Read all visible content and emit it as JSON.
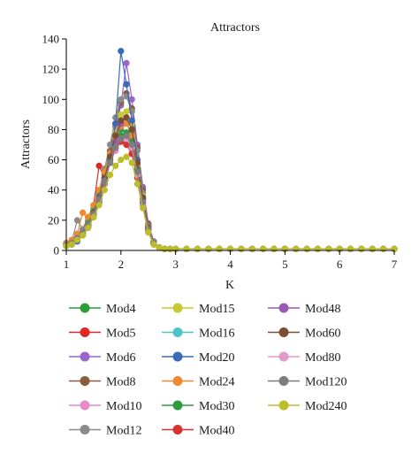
{
  "chart_data": {
    "type": "line",
    "title": "Attractors",
    "xlabel": "K",
    "ylabel": "Attractors",
    "xlim": [
      1,
      7
    ],
    "ylim": [
      0,
      140
    ],
    "x_ticks": [
      1,
      2,
      3,
      4,
      5,
      6,
      7
    ],
    "y_ticks": [
      0,
      20,
      40,
      60,
      80,
      100,
      120,
      140
    ],
    "grid": false,
    "legend_position": "bottom",
    "markers": "filled circles",
    "x": [
      1.0,
      1.1,
      1.2,
      1.3,
      1.4,
      1.5,
      1.6,
      1.7,
      1.8,
      1.9,
      2.0,
      2.1,
      2.2,
      2.3,
      2.4,
      2.5,
      2.6,
      2.7,
      2.8,
      2.9,
      3.0,
      3.2,
      3.4,
      3.6,
      3.8,
      4.0,
      4.2,
      4.4,
      4.6,
      4.8,
      5.0,
      5.2,
      5.4,
      5.6,
      5.8,
      6.0,
      6.2,
      6.4,
      6.6,
      6.8,
      7.0
    ],
    "series": [
      {
        "name": "Mod4",
        "color": "#2e9b3c",
        "values": [
          4,
          5,
          8,
          12,
          18,
          26,
          38,
          52,
          64,
          72,
          80,
          84,
          78,
          60,
          36,
          16,
          5,
          2,
          1,
          1,
          1,
          1,
          1,
          1,
          1,
          1,
          1,
          1,
          1,
          1,
          1,
          1,
          1,
          1,
          1,
          1,
          1,
          1,
          1,
          1,
          1
        ]
      },
      {
        "name": "Mod5",
        "color": "#e02828",
        "values": [
          5,
          6,
          9,
          14,
          22,
          30,
          56,
          48,
          60,
          66,
          74,
          70,
          64,
          48,
          30,
          12,
          4,
          2,
          1,
          1,
          1,
          1,
          1,
          1,
          1,
          1,
          1,
          1,
          1,
          1,
          1,
          1,
          1,
          1,
          1,
          1,
          1,
          1,
          1,
          1,
          1
        ]
      },
      {
        "name": "Mod6",
        "color": "#9966cc",
        "values": [
          3,
          4,
          7,
          11,
          16,
          24,
          34,
          46,
          62,
          82,
          96,
          124,
          100,
          70,
          42,
          18,
          6,
          2,
          1,
          1,
          1,
          1,
          1,
          1,
          1,
          1,
          1,
          1,
          1,
          1,
          1,
          1,
          1,
          1,
          1,
          1,
          1,
          1,
          1,
          1,
          1
        ]
      },
      {
        "name": "Mod8",
        "color": "#8b5a3c",
        "values": [
          4,
          5,
          8,
          12,
          17,
          25,
          36,
          50,
          66,
          84,
          98,
          104,
          94,
          68,
          40,
          17,
          6,
          2,
          1,
          1,
          1,
          1,
          1,
          1,
          1,
          1,
          1,
          1,
          1,
          1,
          1,
          1,
          1,
          1,
          1,
          1,
          1,
          1,
          1,
          1,
          1
        ]
      },
      {
        "name": "Mod10",
        "color": "#e88ac8",
        "values": [
          5,
          6,
          9,
          13,
          19,
          27,
          37,
          48,
          58,
          66,
          72,
          76,
          70,
          54,
          34,
          15,
          5,
          2,
          1,
          1,
          1,
          1,
          1,
          1,
          1,
          1,
          1,
          1,
          1,
          1,
          1,
          1,
          1,
          1,
          1,
          1,
          1,
          1,
          1,
          1,
          1
        ]
      },
      {
        "name": "Mod12",
        "color": "#8a8a8a",
        "values": [
          4,
          6,
          20,
          14,
          20,
          28,
          40,
          54,
          70,
          88,
          100,
          102,
          92,
          66,
          38,
          16,
          6,
          2,
          1,
          1,
          1,
          1,
          1,
          1,
          1,
          1,
          1,
          1,
          1,
          1,
          1,
          1,
          1,
          1,
          1,
          1,
          1,
          1,
          1,
          1,
          1
        ]
      },
      {
        "name": "Mod15",
        "color": "#c8c832",
        "values": [
          3,
          5,
          8,
          12,
          18,
          26,
          36,
          48,
          62,
          78,
          90,
          92,
          84,
          60,
          36,
          15,
          5,
          2,
          1,
          1,
          1,
          1,
          1,
          1,
          1,
          1,
          1,
          1,
          1,
          1,
          1,
          1,
          1,
          1,
          1,
          1,
          1,
          1,
          1,
          1,
          1
        ]
      },
      {
        "name": "Mod16",
        "color": "#4fc3c8",
        "values": [
          4,
          5,
          8,
          12,
          17,
          24,
          34,
          46,
          58,
          68,
          76,
          78,
          72,
          54,
          32,
          14,
          5,
          2,
          1,
          1,
          1,
          1,
          1,
          1,
          1,
          1,
          1,
          1,
          1,
          1,
          1,
          1,
          1,
          1,
          1,
          1,
          1,
          1,
          1,
          1,
          1
        ]
      },
      {
        "name": "Mod20",
        "color": "#3a6bb8",
        "values": [
          3,
          4,
          6,
          10,
          15,
          22,
          32,
          44,
          60,
          84,
          132,
          110,
          86,
          60,
          34,
          14,
          5,
          2,
          1,
          1,
          1,
          1,
          1,
          1,
          1,
          1,
          1,
          1,
          1,
          1,
          1,
          1,
          1,
          1,
          1,
          1,
          1,
          1,
          1,
          1,
          1
        ]
      },
      {
        "name": "Mod24",
        "color": "#f08a32",
        "values": [
          5,
          7,
          11,
          25,
          22,
          30,
          40,
          52,
          64,
          74,
          82,
          84,
          76,
          56,
          34,
          14,
          5,
          2,
          1,
          1,
          1,
          1,
          1,
          1,
          1,
          1,
          1,
          1,
          1,
          1,
          1,
          1,
          1,
          1,
          1,
          1,
          1,
          1,
          1,
          1,
          1
        ]
      },
      {
        "name": "Mod30",
        "color": "#2e9b3c",
        "values": [
          4,
          5,
          8,
          12,
          18,
          26,
          36,
          48,
          60,
          70,
          76,
          78,
          72,
          54,
          32,
          14,
          5,
          2,
          1,
          1,
          1,
          1,
          1,
          1,
          1,
          1,
          1,
          1,
          1,
          1,
          1,
          1,
          1,
          1,
          1,
          1,
          1,
          1,
          1,
          1,
          1
        ]
      },
      {
        "name": "Mod40",
        "color": "#d63232",
        "values": [
          4,
          5,
          8,
          12,
          17,
          24,
          34,
          46,
          58,
          68,
          72,
          70,
          64,
          50,
          30,
          13,
          5,
          2,
          1,
          1,
          1,
          1,
          1,
          1,
          1,
          1,
          1,
          1,
          1,
          1,
          1,
          1,
          1,
          1,
          1,
          1,
          1,
          1,
          1,
          1,
          1
        ]
      },
      {
        "name": "Mod48",
        "color": "#9b59b6",
        "values": [
          3,
          4,
          7,
          11,
          16,
          23,
          32,
          44,
          58,
          72,
          84,
          88,
          80,
          58,
          34,
          14,
          5,
          2,
          1,
          1,
          1,
          1,
          1,
          1,
          1,
          1,
          1,
          1,
          1,
          1,
          1,
          1,
          1,
          1,
          1,
          1,
          1,
          1,
          1,
          1,
          1
        ]
      },
      {
        "name": "Mod60",
        "color": "#7a4e32",
        "values": [
          4,
          5,
          8,
          12,
          17,
          25,
          35,
          48,
          62,
          76,
          86,
          88,
          80,
          58,
          35,
          15,
          5,
          2,
          1,
          1,
          1,
          1,
          1,
          1,
          1,
          1,
          1,
          1,
          1,
          1,
          1,
          1,
          1,
          1,
          1,
          1,
          1,
          1,
          1,
          1,
          1
        ]
      },
      {
        "name": "Mod80",
        "color": "#e29ac8",
        "values": [
          4,
          5,
          8,
          12,
          17,
          24,
          34,
          46,
          58,
          68,
          74,
          74,
          68,
          50,
          30,
          13,
          5,
          2,
          1,
          1,
          1,
          1,
          1,
          1,
          1,
          1,
          1,
          1,
          1,
          1,
          1,
          1,
          1,
          1,
          1,
          1,
          1,
          1,
          1,
          1,
          1
        ]
      },
      {
        "name": "Mod120",
        "color": "#7d7d7d",
        "values": [
          4,
          5,
          8,
          12,
          17,
          24,
          34,
          46,
          58,
          68,
          74,
          76,
          70,
          52,
          32,
          14,
          5,
          2,
          1,
          1,
          1,
          1,
          1,
          1,
          1,
          1,
          1,
          1,
          1,
          1,
          1,
          1,
          1,
          1,
          1,
          1,
          1,
          1,
          1,
          1,
          1
        ]
      },
      {
        "name": "Mod240",
        "color": "#bdbd2a",
        "values": [
          3,
          4,
          7,
          10,
          15,
          22,
          30,
          40,
          50,
          56,
          60,
          62,
          58,
          44,
          28,
          12,
          4,
          2,
          1,
          1,
          1,
          1,
          1,
          1,
          1,
          1,
          1,
          1,
          1,
          1,
          1,
          1,
          1,
          1,
          1,
          1,
          1,
          1,
          1,
          1,
          1
        ]
      }
    ]
  }
}
